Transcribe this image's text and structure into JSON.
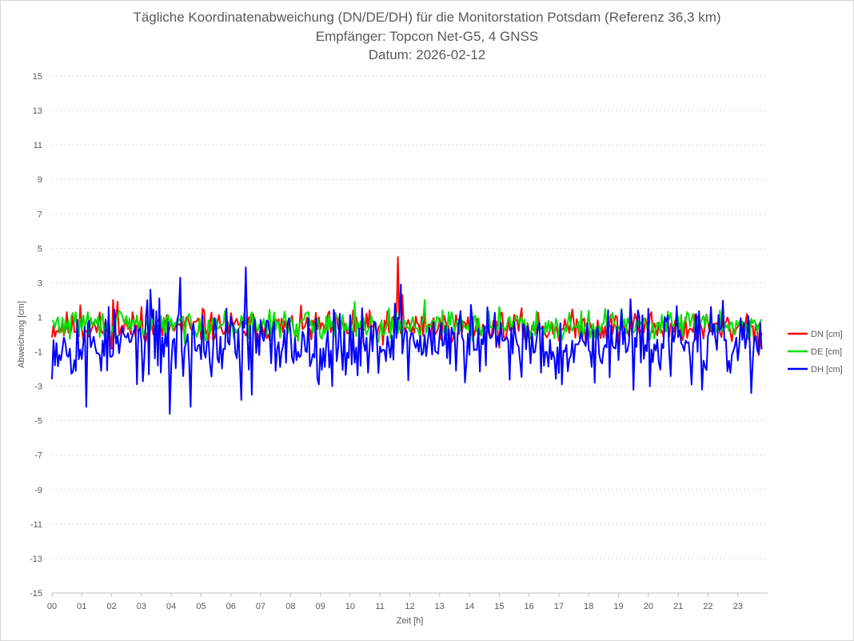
{
  "chart_data": {
    "type": "line",
    "title": "Tägliche Koordinatenabweichung (DN/DE/DH) für die Monitorstation Potsdam (Referenz 36,3 km)",
    "subtitle1": "Empfänger: Topcon Net-G5, 4 GNSS",
    "subtitle2": "Datum: 2026-02-12",
    "xlabel": "Zeit [h]",
    "ylabel": "Abweichung [cm]",
    "ylim": [
      -15,
      15
    ],
    "yticks": [
      15,
      13,
      11,
      9,
      7,
      5,
      3,
      1,
      -1,
      -3,
      -5,
      -7,
      -9,
      -11,
      -13,
      -15
    ],
    "xlim": [
      0,
      24
    ],
    "xticks": [
      "00",
      "01",
      "02",
      "03",
      "04",
      "05",
      "06",
      "07",
      "08",
      "09",
      "10",
      "11",
      "12",
      "13",
      "14",
      "15",
      "16",
      "17",
      "18",
      "19",
      "20",
      "21",
      "22",
      "23"
    ],
    "grid": "horizontal dotted",
    "legend_position": "right",
    "samples_per_hour": 20,
    "x_end_hour": 23.8,
    "series": [
      {
        "name": "DN [cm]",
        "color": "#ff0000",
        "baseline": 0.4,
        "noise": 0.45,
        "seed": 11,
        "spikes": [
          [
            0.95,
            1.7
          ],
          [
            2.05,
            2.0
          ],
          [
            2.2,
            1.9
          ],
          [
            3.0,
            1.6
          ],
          [
            5.05,
            1.5
          ],
          [
            10.1,
            1.4
          ],
          [
            11.6,
            4.5
          ],
          [
            11.75,
            2.3
          ],
          [
            12.5,
            1.5
          ],
          [
            20.1,
            1.3
          ],
          [
            23.3,
            1.2
          ],
          [
            23.7,
            -1.2
          ]
        ]
      },
      {
        "name": "DE [cm]",
        "color": "#00e000",
        "baseline": 0.55,
        "noise": 0.4,
        "seed": 29,
        "spikes": [
          [
            1.2,
            1.3
          ],
          [
            10.15,
            1.9
          ],
          [
            12.5,
            2.0
          ],
          [
            15.0,
            1.6
          ],
          [
            19.1,
            1.5
          ],
          [
            21.3,
            1.3
          ],
          [
            22.4,
            1.4
          ],
          [
            23.8,
            0.9
          ]
        ]
      },
      {
        "name": "DH [cm]",
        "color": "#0000ff",
        "baseline": -0.5,
        "noise": 1.0,
        "seed": 53,
        "spikes": [
          [
            1.15,
            -4.2
          ],
          [
            3.3,
            2.6
          ],
          [
            3.6,
            2.1
          ],
          [
            3.95,
            -4.6
          ],
          [
            4.3,
            3.3
          ],
          [
            4.65,
            -4.2
          ],
          [
            6.35,
            -3.8
          ],
          [
            6.5,
            3.9
          ],
          [
            6.7,
            -3.5
          ],
          [
            9.4,
            -3.0
          ],
          [
            11.5,
            1.8
          ],
          [
            11.7,
            2.9
          ],
          [
            17.1,
            -2.9
          ],
          [
            18.2,
            -2.8
          ],
          [
            20.0,
            1.5
          ],
          [
            21.8,
            -3.2
          ],
          [
            23.45,
            -3.4
          ]
        ]
      }
    ]
  }
}
